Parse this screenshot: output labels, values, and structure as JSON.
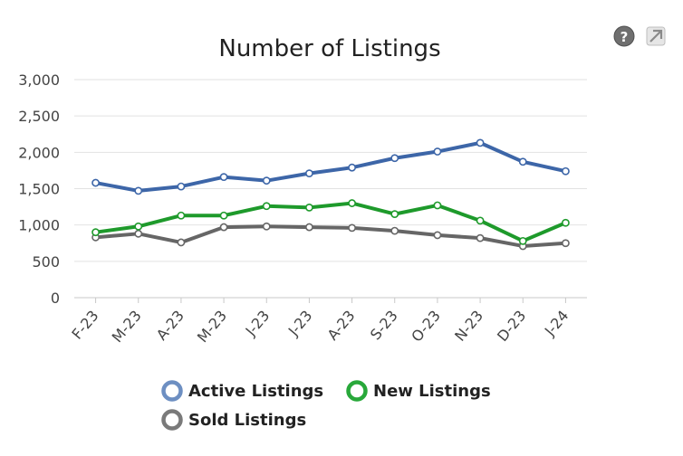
{
  "chart_data": {
    "type": "line",
    "title": "Number of Listings",
    "categories": [
      "F-23",
      "M-23",
      "A-23",
      "M-23",
      "J-23",
      "J-23",
      "A-23",
      "S-23",
      "O-23",
      "N-23",
      "D-23",
      "J-24"
    ],
    "ylim": [
      0,
      3000
    ],
    "yticks": [
      0,
      500,
      1000,
      1500,
      2000,
      2500,
      3000
    ],
    "ytick_labels": [
      "0",
      "500",
      "1,000",
      "1,500",
      "2,000",
      "2,500",
      "3,000"
    ],
    "grid": true,
    "legend_position": "bottom",
    "series": [
      {
        "name": "Active Listings",
        "color": "#3d66a8",
        "legend_color": "#6d8fc2",
        "values": [
          1580,
          1470,
          1530,
          1660,
          1610,
          1710,
          1790,
          1920,
          2010,
          2130,
          1870,
          1740
        ]
      },
      {
        "name": "New Listings",
        "color": "#1e9a2b",
        "legend_color": "#28a83a",
        "values": [
          900,
          980,
          1130,
          1130,
          1260,
          1240,
          1300,
          1150,
          1270,
          1060,
          780,
          1030
        ]
      },
      {
        "name": "Sold Listings",
        "color": "#666666",
        "legend_color": "#7a7a7a",
        "values": [
          830,
          880,
          760,
          970,
          980,
          970,
          960,
          920,
          860,
          820,
          710,
          750
        ]
      }
    ]
  },
  "icons": {
    "help": "help-circle-icon",
    "settings": "settings-icon"
  }
}
